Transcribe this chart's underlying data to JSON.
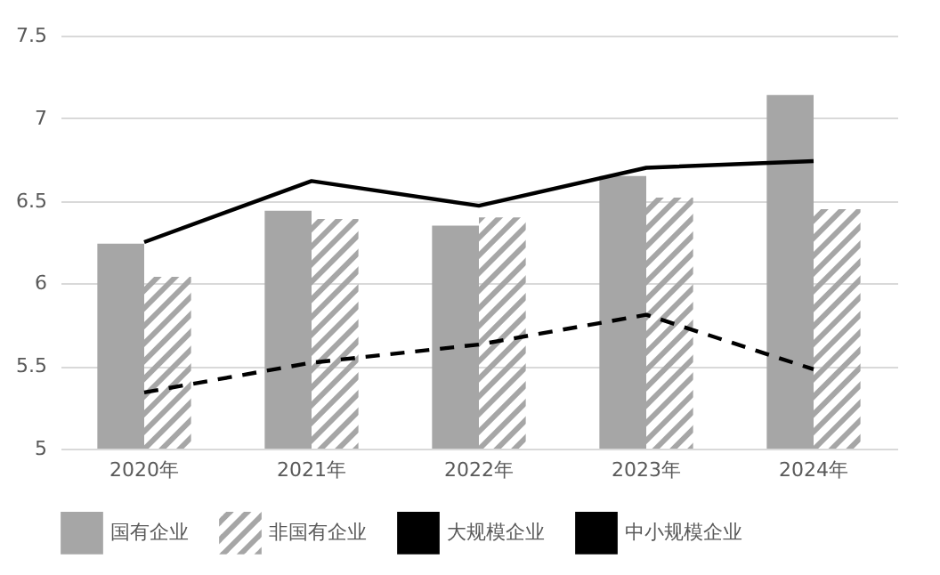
{
  "chart_data": {
    "type": "bar",
    "categories": [
      "2020年",
      "2021年",
      "2022年",
      "2023年",
      "2024年"
    ],
    "series": [
      {
        "name": "国有企业",
        "type": "bar",
        "color": "#a6a6a6",
        "values": [
          6.24,
          6.44,
          6.35,
          6.65,
          7.14
        ]
      },
      {
        "name": "非国有企业",
        "type": "bar",
        "color": "#a6a6a6",
        "values": [
          6.04,
          6.39,
          6.4,
          6.52,
          6.45
        ]
      },
      {
        "name": "大规模企业",
        "type": "line",
        "color": "#000000",
        "line_style": "solid",
        "values": [
          6.25,
          6.62,
          6.47,
          6.7,
          6.74
        ]
      },
      {
        "name": "中小规模企业",
        "type": "line",
        "color": "#000000",
        "line_style": "dashed",
        "values": [
          5.34,
          5.52,
          5.63,
          5.81,
          5.48
        ]
      }
    ],
    "ylim": [
      5,
      7.5
    ],
    "yticks": [
      5,
      5.5,
      6,
      6.5,
      7,
      7.5
    ],
    "grid": "y",
    "legend": "bottom"
  }
}
